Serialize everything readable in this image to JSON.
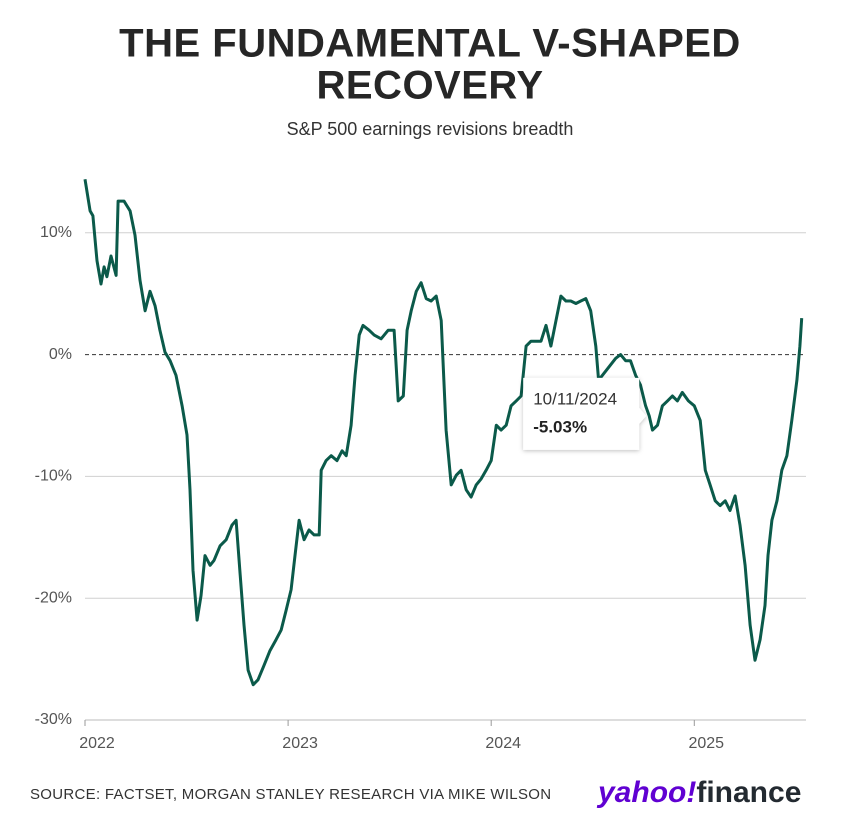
{
  "chart_data": {
    "type": "line",
    "title": [
      "THE FUNDAMENTAL V-SHAPED",
      "RECOVERY"
    ],
    "subtitle": "S&P 500 earnings revisions breadth",
    "source": "SOURCE: FACTSET, MORGAN STANLEY RESEARCH VIA MIKE WILSON",
    "brand": [
      "yahoo!",
      "finance"
    ],
    "xlim": [
      2022,
      2025.55
    ],
    "xticks": [
      2022,
      2023,
      2024,
      2025
    ],
    "ylim": [
      -30,
      14.5
    ],
    "yticks": [
      {
        "value": -30,
        "label": "-30%"
      },
      {
        "value": -20,
        "label": "-20%"
      },
      {
        "value": -10,
        "label": "-10%"
      },
      {
        "value": 0,
        "label": "0%"
      },
      {
        "value": 10,
        "label": "10%"
      }
    ],
    "grid": true,
    "zero_line_dashed": true,
    "series": [
      {
        "color": "#0b5a4a",
        "x": [
          2022,
          2022.025,
          2022.039,
          2022.059,
          2022.079,
          2022.094,
          2022.108,
          2022.128,
          2022.153,
          2022.163,
          2022.192,
          2022.222,
          2022.246,
          2022.271,
          2022.296,
          2022.32,
          2022.345,
          2022.369,
          2022.394,
          2022.419,
          2022.448,
          2022.478,
          2022.502,
          2022.517,
          2022.532,
          2022.552,
          2022.571,
          2022.591,
          2022.616,
          2022.635,
          2022.665,
          2022.695,
          2022.724,
          2022.744,
          2022.764,
          2022.783,
          2022.803,
          2022.828,
          2022.852,
          2022.882,
          2022.911,
          2022.941,
          2022.966,
          2022.99,
          2023.015,
          2023.034,
          2023.054,
          2023.079,
          2023.103,
          2023.128,
          2023.153,
          2023.163,
          2023.187,
          2023.212,
          2023.241,
          2023.266,
          2023.286,
          2023.31,
          2023.33,
          2023.35,
          2023.369,
          2023.399,
          2023.424,
          2023.458,
          2023.493,
          2023.522,
          2023.542,
          2023.567,
          2023.586,
          2023.606,
          2023.631,
          2023.655,
          2023.68,
          2023.704,
          2023.729,
          2023.754,
          2023.778,
          2023.803,
          2023.828,
          2023.852,
          2023.877,
          2023.901,
          2023.926,
          2023.951,
          2023.975,
          2024,
          2024.025,
          2024.049,
          2024.074,
          2024.098,
          2024.123,
          2024.147,
          2024.172,
          2024.196,
          2024.245,
          2024.27,
          2024.294,
          2024.319,
          2024.343,
          2024.368,
          2024.392,
          2024.417,
          2024.441,
          2024.466,
          2024.49,
          2024.515,
          2024.529,
          2024.613,
          2024.637,
          2024.662,
          2024.686,
          2024.711,
          2024.735,
          2024.76,
          2024.778,
          2024.794,
          2024.819,
          2024.843,
          2024.868,
          2024.892,
          2024.917,
          2024.941,
          2024.971,
          2025,
          2025.029,
          2025.054,
          2025.078,
          2025.103,
          2025.127,
          2025.152,
          2025.176,
          2025.201,
          2025.225,
          2025.25,
          2025.275,
          2025.299,
          2025.324,
          2025.348,
          2025.363,
          2025.382,
          2025.407,
          2025.431,
          2025.456,
          2025.48,
          2025.505,
          2025.52,
          2025.529
        ],
        "values": [
          14.4,
          11.8,
          11.4,
          7.7,
          5.8,
          7.2,
          6.4,
          8.1,
          6.5,
          12.6,
          12.6,
          11.8,
          9.8,
          6.1,
          3.6,
          5.2,
          4.0,
          2.0,
          0.2,
          -0.5,
          -1.7,
          -4.2,
          -6.6,
          -11.1,
          -17.7,
          -21.8,
          -19.8,
          -16.5,
          -17.3,
          -16.9,
          -15.7,
          -15.2,
          -14.0,
          -13.6,
          -18.1,
          -22.2,
          -25.9,
          -27.1,
          -26.7,
          -25.5,
          -24.3,
          -23.4,
          -22.6,
          -21.0,
          -19.3,
          -16.5,
          -13.6,
          -15.2,
          -14.4,
          -14.8,
          -14.8,
          -9.5,
          -8.7,
          -8.3,
          -8.7,
          -7.9,
          -8.3,
          -5.8,
          -1.7,
          1.6,
          2.4,
          2.0,
          1.6,
          1.3,
          2.0,
          2.0,
          -3.8,
          -3.4,
          2.0,
          3.6,
          5.2,
          5.9,
          4.6,
          4.4,
          4.8,
          2.8,
          -6.2,
          -10.7,
          -9.9,
          -9.5,
          -11.1,
          -11.7,
          -10.7,
          -10.2,
          -9.5,
          -8.7,
          -5.8,
          -6.2,
          -5.8,
          -4.2,
          -3.8,
          -3.4,
          0.7,
          1.1,
          1.1,
          2.4,
          0.7,
          2.8,
          4.8,
          4.4,
          4.4,
          4.2,
          4.4,
          4.6,
          3.6,
          0.7,
          -2.1,
          -0.3,
          0.0,
          -0.5,
          -0.5,
          -1.7,
          -2.5,
          -4.2,
          -5.03,
          -6.2,
          -5.8,
          -4.2,
          -3.8,
          -3.4,
          -3.8,
          -3.1,
          -3.8,
          -4.2,
          -5.4,
          -9.5,
          -10.7,
          -12.0,
          -12.4,
          -12.0,
          -12.8,
          -11.6,
          -14.0,
          -17.3,
          -22.2,
          -25.1,
          -23.4,
          -20.6,
          -16.5,
          -13.6,
          -12.0,
          -9.5,
          -8.3,
          -5.4,
          -2.1,
          0.7,
          3.0
        ]
      }
    ],
    "annotation": {
      "label": "10/11/2024",
      "x": 2024.778,
      "value": -5.03,
      "value_label": "-5.03%"
    }
  }
}
